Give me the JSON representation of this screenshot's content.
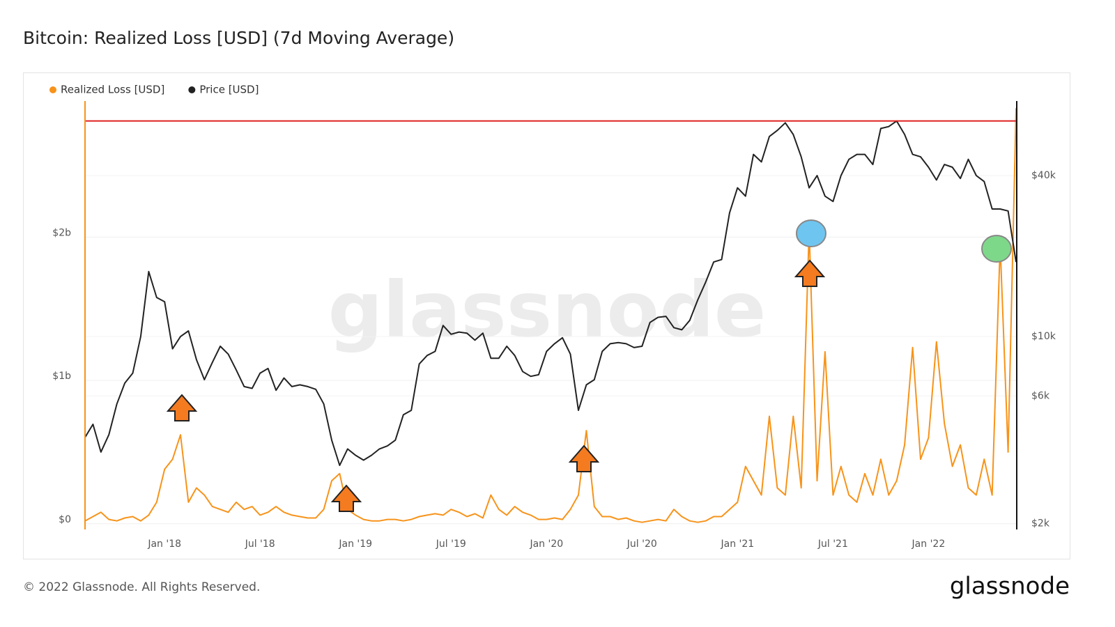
{
  "chart_data": {
    "type": "line",
    "title": "Bitcoin: Realized Loss [USD] (7d Moving Average)",
    "watermark": "glassnode",
    "footer": "© 2022 Glassnode. All Rights Reserved.",
    "logo": "glassnode",
    "categories": [
      null,
      null,
      null,
      null,
      null,
      null,
      null,
      null,
      null,
      null,
      "Jan '18",
      null,
      null,
      null,
      null,
      null,
      null,
      null,
      null,
      null,
      null,
      null,
      "Jul '18",
      null,
      null,
      null,
      null,
      null,
      null,
      null,
      null,
      null,
      null,
      null,
      "Jan '19",
      null,
      null,
      null,
      null,
      null,
      null,
      null,
      null,
      null,
      null,
      null,
      "Jul '19",
      null,
      null,
      null,
      null,
      null,
      null,
      null,
      null,
      null,
      null,
      null,
      "Jan '20",
      null,
      null,
      null,
      null,
      null,
      null,
      null,
      null,
      null,
      null,
      null,
      "Jul '20",
      null,
      null,
      null,
      null,
      null,
      null,
      null,
      null,
      null,
      null,
      null,
      "Jan '21",
      null,
      null,
      null,
      null,
      null,
      null,
      null,
      null,
      null,
      null,
      null,
      "Jul '21",
      null,
      null,
      null,
      null,
      null,
      null,
      null,
      null,
      null,
      null,
      null,
      "Jan '22",
      null,
      null,
      null,
      null,
      null,
      null,
      null,
      null,
      null,
      null,
      null
    ],
    "series": [
      {
        "name": "Realized Loss [USD]",
        "color": "#f7931a",
        "axis": "y",
        "values": [
          20000000.0,
          50000000.0,
          80000000.0,
          30000000.0,
          20000000.0,
          40000000.0,
          50000000.0,
          20000000.0,
          60000000.0,
          150000000.0,
          380000000.0,
          450000000.0,
          620000000.0,
          150000000.0,
          250000000.0,
          200000000.0,
          120000000.0,
          100000000.0,
          80000000.0,
          150000000.0,
          100000000.0,
          120000000.0,
          60000000.0,
          80000000.0,
          120000000.0,
          80000000.0,
          60000000.0,
          50000000.0,
          40000000.0,
          40000000.0,
          100000000.0,
          300000000.0,
          350000000.0,
          100000000.0,
          60000000.0,
          30000000.0,
          20000000.0,
          20000000.0,
          30000000.0,
          30000000.0,
          20000000.0,
          30000000.0,
          50000000.0,
          60000000.0,
          70000000.0,
          60000000.0,
          100000000.0,
          80000000.0,
          50000000.0,
          70000000.0,
          40000000.0,
          200000000.0,
          100000000.0,
          60000000.0,
          120000000.0,
          80000000.0,
          60000000.0,
          30000000.0,
          30000000.0,
          40000000.0,
          30000000.0,
          100000000.0,
          200000000.0,
          650000000.0,
          120000000.0,
          50000000.0,
          50000000.0,
          30000000.0,
          40000000.0,
          20000000.0,
          10000000.0,
          20000000.0,
          30000000.0,
          20000000.0,
          100000000.0,
          50000000.0,
          20000000.0,
          10000000.0,
          20000000.0,
          50000000.0,
          50000000.0,
          100000000.0,
          150000000.0,
          400000000.0,
          300000000.0,
          200000000.0,
          750000000.0,
          250000000.0,
          200000000.0,
          750000000.0,
          250000000.0,
          2050000000.0,
          300000000.0,
          1200000000.0,
          200000000.0,
          400000000.0,
          200000000.0,
          150000000.0,
          350000000.0,
          200000000.0,
          450000000.0,
          200000000.0,
          300000000.0,
          550000000.0,
          1230000000.0,
          450000000.0,
          600000000.0,
          1270000000.0,
          700000000.0,
          400000000.0,
          550000000.0,
          250000000.0,
          200000000.0,
          450000000.0,
          200000000.0,
          1950000000.0,
          500000000.0,
          2900000000.0
        ]
      },
      {
        "name": "Price [USD]",
        "color": "#222222",
        "axis": "y2",
        "values": [
          4200,
          4700,
          3700,
          4300,
          5600,
          6700,
          7300,
          10000,
          17500,
          14000,
          13500,
          9000,
          10000,
          10500,
          8200,
          6900,
          8000,
          9200,
          8600,
          7500,
          6500,
          6400,
          7300,
          7600,
          6300,
          7000,
          6500,
          6600,
          6500,
          6350,
          5600,
          4100,
          3300,
          3800,
          3600,
          3450,
          3600,
          3800,
          3900,
          4100,
          5100,
          5300,
          7900,
          8500,
          8800,
          11000,
          10200,
          10400,
          10300,
          9700,
          10300,
          8300,
          8300,
          9200,
          8500,
          7400,
          7100,
          7200,
          8800,
          9400,
          9900,
          8600,
          5300,
          6600,
          6900,
          8800,
          9400,
          9500,
          9400,
          9100,
          9200,
          11300,
          11800,
          11900,
          10800,
          10600,
          11500,
          13700,
          16000,
          19000,
          19400,
          29000,
          36000,
          33500,
          48000,
          45000,
          56000,
          59000,
          63000,
          57000,
          47000,
          36000,
          40000,
          33500,
          32000,
          40000,
          46000,
          48000,
          48000,
          44000,
          60000,
          61000,
          64000,
          57000,
          48000,
          47000,
          43000,
          38500,
          44000,
          43000,
          39000,
          46000,
          40000,
          38000,
          30000,
          30000,
          29500,
          19000
        ]
      }
    ],
    "ylim": [
      -40000000.0,
      2950000000.0
    ],
    "yticks": [
      {
        "value": 0,
        "label": "$0"
      },
      {
        "value": 1000000000.0,
        "label": "$1b"
      },
      {
        "value": 2000000000.0,
        "label": "$2b"
      }
    ],
    "y2lim": [
      1900,
      76000
    ],
    "y2scale": "log",
    "y2ticks": [
      {
        "value": 2000,
        "label": "$2k"
      },
      {
        "value": 6000,
        "label": "$6k"
      },
      {
        "value": 10000,
        "label": "$10k"
      },
      {
        "value": 40000,
        "label": "$40k"
      }
    ],
    "reference_line": {
      "axis": "y2",
      "value": 64000,
      "color": "#e02020"
    },
    "grid": true,
    "legend": "top-left"
  }
}
